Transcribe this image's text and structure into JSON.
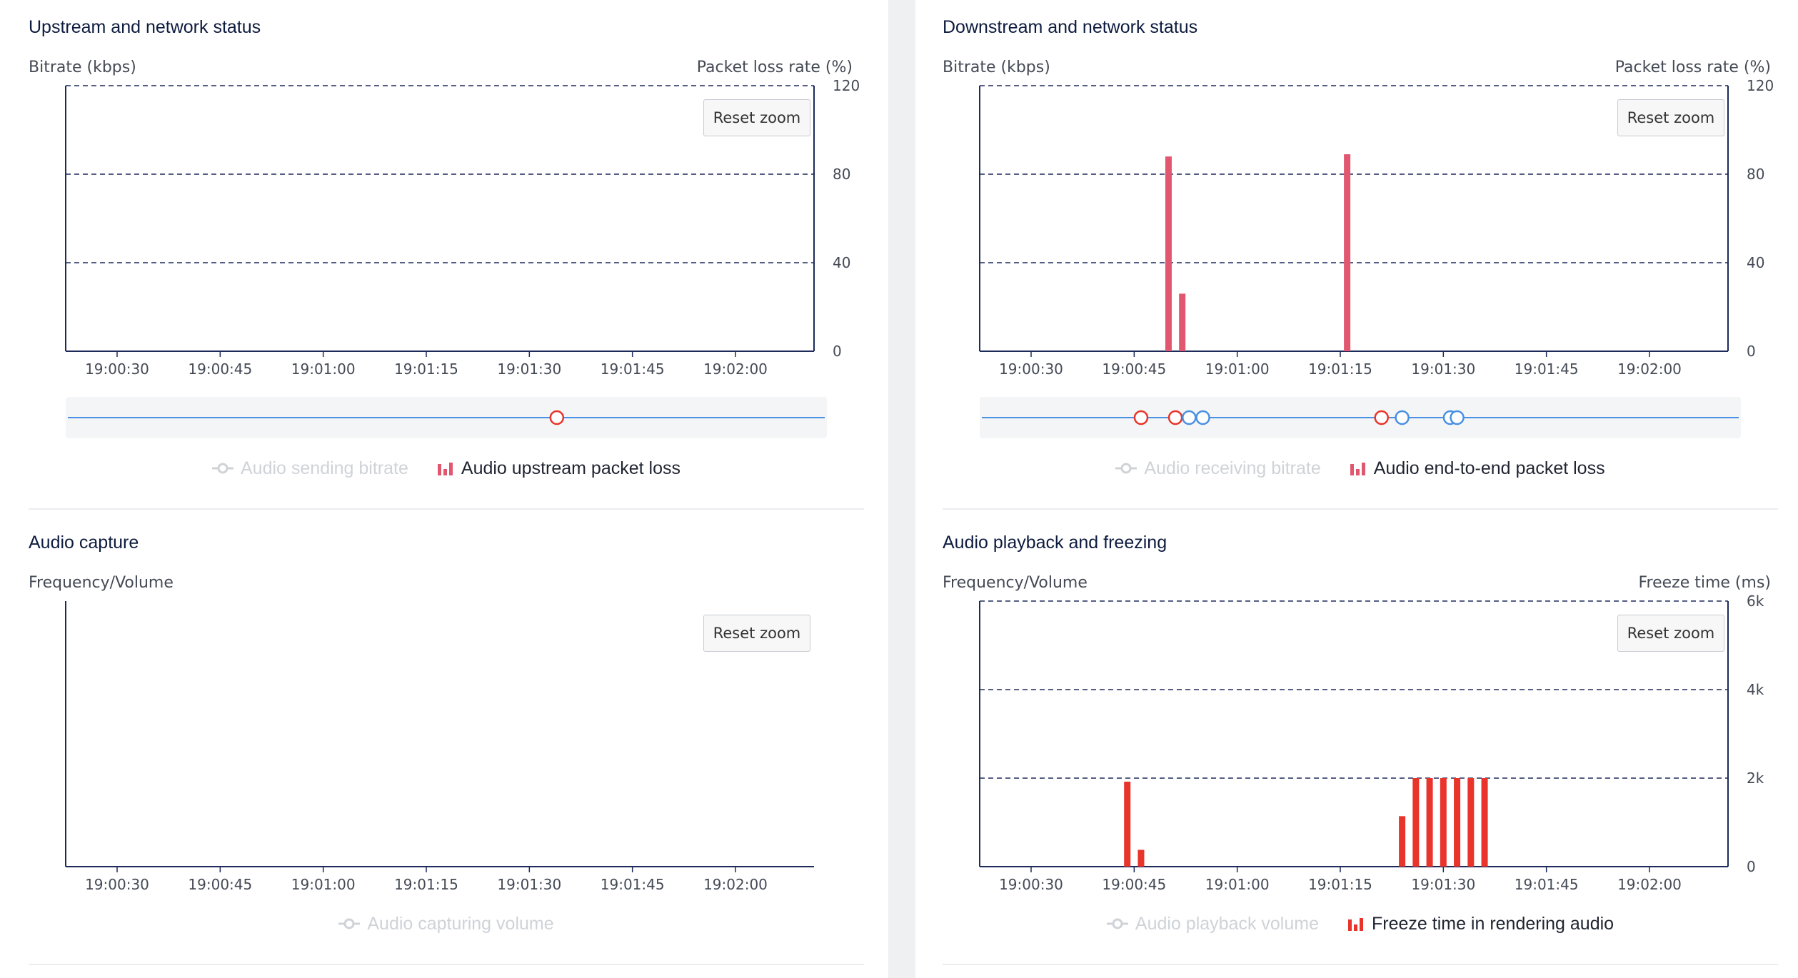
{
  "colors": {
    "bar_pink": "#e0576f",
    "bar_red": "#e8342a",
    "nav_line": "#4a90e2",
    "marker_red": "#e8342a",
    "marker_blue": "#4a90e2",
    "grid": "#1d2a5a",
    "axis": "#1d2a5a",
    "legend_off": "#cfd3d8"
  },
  "reset_zoom_label": "Reset zoom",
  "chart_data": [
    {
      "id": "upstream",
      "type": "bar",
      "title": "Upstream and network status",
      "ylabel_left": "Bitrate (kbps)",
      "ylabel_right": "Packet loss rate (%)",
      "x_ticks": [
        "19:00:30",
        "19:00:45",
        "19:01:00",
        "19:01:15",
        "19:01:30",
        "19:01:45",
        "19:02:00"
      ],
      "y_right_ticks": [
        "0",
        "40",
        "80",
        "120"
      ],
      "ylim_right": [
        0,
        120
      ],
      "series": [
        {
          "legend": "Audio sending bitrate",
          "visible": false,
          "kind": "line",
          "values": []
        },
        {
          "legend": "Audio upstream packet loss",
          "visible": true,
          "kind": "bar",
          "values": []
        }
      ]
    },
    {
      "id": "downstream",
      "type": "bar",
      "title": "Downstream and network status",
      "ylabel_left": "Bitrate (kbps)",
      "ylabel_right": "Packet loss rate (%)",
      "x_ticks": [
        "19:00:30",
        "19:00:45",
        "19:01:00",
        "19:01:15",
        "19:01:30",
        "19:01:45",
        "19:02:00"
      ],
      "y_right_ticks": [
        "0",
        "40",
        "80",
        "120"
      ],
      "ylim_right": [
        0,
        120
      ],
      "series": [
        {
          "legend": "Audio receiving bitrate",
          "visible": false,
          "kind": "line",
          "values": []
        },
        {
          "legend": "Audio end-to-end packet loss",
          "visible": true,
          "kind": "bar",
          "values": [
            {
              "x": "19:00:50",
              "y": 88
            },
            {
              "x": "19:00:52",
              "y": 26
            },
            {
              "x": "19:01:16",
              "y": 89
            }
          ]
        }
      ]
    },
    {
      "id": "capture",
      "type": "line",
      "title": "Audio capture",
      "ylabel_left": "Frequency/Volume",
      "ylabel_right": "",
      "x_ticks": [
        "19:00:30",
        "19:00:45",
        "19:01:00",
        "19:01:15",
        "19:01:30",
        "19:01:45",
        "19:02:00"
      ],
      "y_right_ticks": [],
      "series": [
        {
          "legend": "Audio capturing volume",
          "visible": false,
          "kind": "line",
          "values": []
        }
      ]
    },
    {
      "id": "playback",
      "type": "bar",
      "title": "Audio playback and freezing",
      "ylabel_left": "Frequency/Volume",
      "ylabel_right": "Freeze time (ms)",
      "x_ticks": [
        "19:00:30",
        "19:00:45",
        "19:01:00",
        "19:01:15",
        "19:01:30",
        "19:01:45",
        "19:02:00"
      ],
      "y_right_ticks": [
        "0",
        "2k",
        "4k",
        "6k"
      ],
      "ylim_right": [
        0,
        6000
      ],
      "series": [
        {
          "legend": "Audio playback volume",
          "visible": false,
          "kind": "line",
          "values": []
        },
        {
          "legend": "Freeze time in rendering audio",
          "visible": true,
          "kind": "bar",
          "values": [
            {
              "x": "19:00:44",
              "y": 1920
            },
            {
              "x": "19:00:46",
              "y": 380
            },
            {
              "x": "19:01:24",
              "y": 1140
            },
            {
              "x": "19:01:26",
              "y": 2000
            },
            {
              "x": "19:01:28",
              "y": 2000
            },
            {
              "x": "19:01:30",
              "y": 2000
            },
            {
              "x": "19:01:32",
              "y": 2000
            },
            {
              "x": "19:01:34",
              "y": 2000
            },
            {
              "x": "19:01:36",
              "y": 2000
            }
          ]
        }
      ]
    }
  ],
  "navigators": {
    "upstream": {
      "markers": [
        {
          "x": "19:01:34",
          "color": "red"
        }
      ]
    },
    "downstream": {
      "markers": [
        {
          "x": "19:00:46",
          "color": "red"
        },
        {
          "x": "19:00:51",
          "color": "red"
        },
        {
          "x": "19:00:53",
          "color": "blue"
        },
        {
          "x": "19:00:55",
          "color": "blue"
        },
        {
          "x": "19:01:21",
          "color": "red"
        },
        {
          "x": "19:01:24",
          "color": "blue"
        },
        {
          "x": "19:01:31",
          "color": "blue"
        },
        {
          "x": "19:01:32",
          "color": "blue"
        }
      ]
    }
  }
}
